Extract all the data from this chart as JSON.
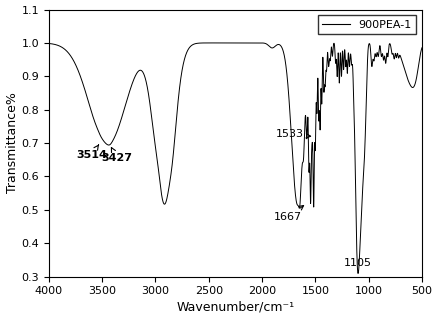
{
  "title": "",
  "xlabel": "Wavenumber/cm⁻¹",
  "ylabel": "Transmittance%",
  "xlim": [
    4000,
    500
  ],
  "ylim": [
    0.3,
    1.1
  ],
  "legend_label": "900PEA-1",
  "yticks": [
    0.3,
    0.4,
    0.5,
    0.6,
    0.7,
    0.8,
    0.9,
    1.0,
    1.1
  ],
  "xticks": [
    4000,
    3500,
    3000,
    2500,
    2000,
    1500,
    1000,
    500
  ],
  "line_color": "black",
  "background_color": "white"
}
